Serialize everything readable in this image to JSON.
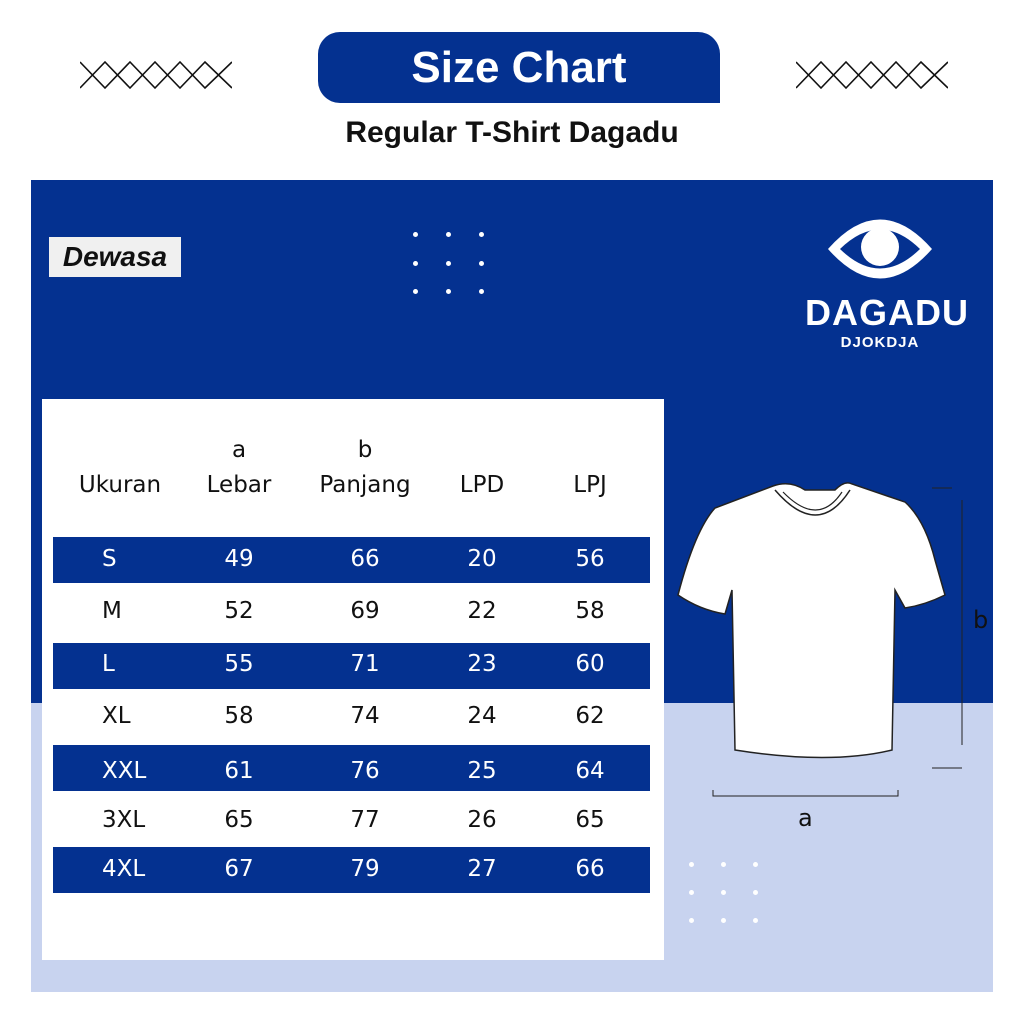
{
  "header": {
    "title": "Size Chart",
    "subtitle": "Regular T-Shirt Dagadu"
  },
  "category_label": "Dewasa",
  "logo": {
    "brand": "DAGADU",
    "sub": "DJOKDJA"
  },
  "colors": {
    "primary": "#043190",
    "light": "#c8d3ef"
  },
  "table": {
    "columns": [
      {
        "top": "",
        "label": "Ukuran"
      },
      {
        "top": "a",
        "label": "Lebar"
      },
      {
        "top": "b",
        "label": "Panjang"
      },
      {
        "top": "",
        "label": "LPD"
      },
      {
        "top": "",
        "label": "LPJ"
      }
    ],
    "rows": [
      [
        "S",
        "49",
        "66",
        "20",
        "56"
      ],
      [
        "M",
        "52",
        "69",
        "22",
        "58"
      ],
      [
        "L",
        "55",
        "71",
        "23",
        "60"
      ],
      [
        "XL",
        "58",
        "74",
        "24",
        "62"
      ],
      [
        "XXL",
        "61",
        "76",
        "25",
        "64"
      ],
      [
        "3XL",
        "65",
        "77",
        "26",
        "65"
      ],
      [
        "4XL",
        "67",
        "79",
        "27",
        "66"
      ]
    ]
  },
  "diagram": {
    "width_label": "a",
    "length_label": "b"
  }
}
